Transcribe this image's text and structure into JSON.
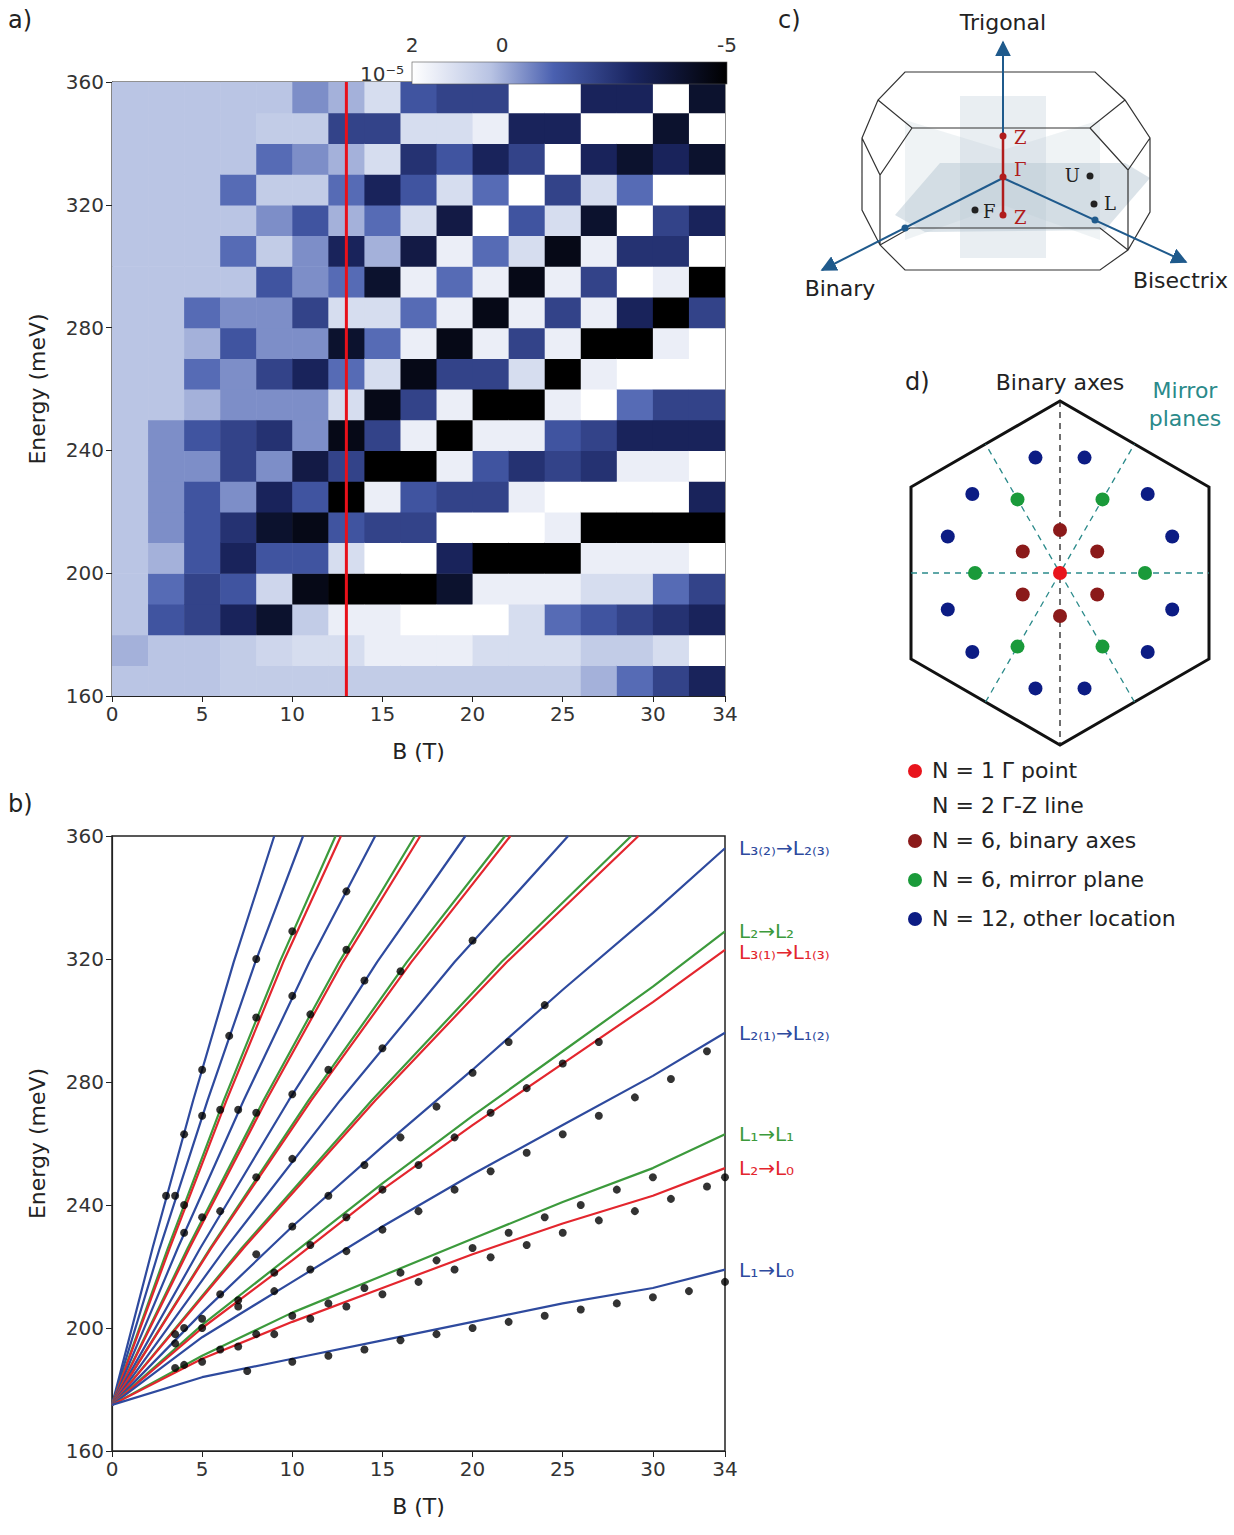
{
  "chart_data": [
    {
      "label": "a)",
      "type": "heatmap",
      "xlabel": "B (T)",
      "ylabel": "Energy (meV)",
      "xlim": [
        0,
        34
      ],
      "xticks": [
        0,
        5,
        10,
        15,
        20,
        25,
        30,
        34
      ],
      "ylim": [
        160,
        360
      ],
      "yticks": [
        160,
        200,
        240,
        280,
        320,
        360
      ],
      "grid": false,
      "xbins": [
        0,
        2,
        4,
        6,
        8,
        10,
        12,
        14,
        16,
        18,
        20,
        22,
        24,
        26,
        28,
        30,
        32,
        34
      ],
      "ybins": [
        160,
        170,
        180,
        190,
        200,
        210,
        220,
        230,
        240,
        250,
        260,
        270,
        280,
        290,
        300,
        310,
        320,
        330,
        340,
        350,
        360
      ],
      "values": [
        [
          0.3,
          0,
          0.3,
          0.3,
          0.3,
          0.3,
          0.3,
          0.3,
          0.3,
          0.3,
          0.3,
          0.3,
          0.3,
          0.3,
          0.3,
          0.3,
          0.3,
          0.3,
          0.3,
          0.3
        ],
        [
          0.3,
          0.3,
          -1.5,
          -1,
          0,
          -0.5,
          -0.5,
          -0.5,
          -0.5,
          0.3,
          0.3,
          0.3,
          0.3,
          0.3,
          0.3,
          0.3,
          0.3,
          0.3,
          0.3,
          0.3
        ],
        [
          0.3,
          0.3,
          -2,
          -2,
          -1.5,
          -1.5,
          -1.5,
          -0.5,
          -1.5,
          0,
          -1,
          0,
          -1,
          0.3,
          0.3,
          0.3,
          0.3,
          0.3,
          0.3,
          0.3
        ],
        [
          0.5,
          0.5,
          -3,
          -1.5,
          -3,
          -2.5,
          -0.5,
          -2,
          -2,
          -0.5,
          -0.5,
          -1.5,
          -0.5,
          0.3,
          -1,
          0.3,
          -1,
          0.3,
          0.3,
          0.3
        ],
        [
          0.5,
          0.8,
          -4,
          0.8,
          -1.5,
          -4,
          -3,
          -0.5,
          -2.5,
          -0.5,
          -2,
          -0.5,
          -0.5,
          -1.5,
          0.5,
          -0.5,
          0.5,
          -1,
          0.5,
          0.3
        ],
        [
          0.5,
          1,
          0.5,
          -4.5,
          -1.5,
          -4.5,
          -1.5,
          -3.5,
          -0.5,
          -0.5,
          -3,
          -0.5,
          -2,
          -0.5,
          -0.5,
          -1.5,
          0.5,
          -0.5,
          0.5,
          -0.5
        ],
        [
          0.5,
          1,
          1.5,
          -5,
          1,
          -1.5,
          -5,
          -2,
          -4.5,
          1,
          -1,
          -4,
          1,
          -1,
          -3,
          0,
          -1,
          0,
          -2,
          0
        ],
        [
          0.5,
          1.5,
          1.5,
          -5,
          2,
          -2,
          1.5,
          -5,
          -2,
          -4.5,
          1,
          -1,
          1,
          -4,
          0,
          -1,
          -3,
          1,
          -2,
          1
        ],
        [
          0.5,
          1.5,
          2,
          -5,
          2,
          -2,
          -1.5,
          -5,
          1.5,
          -2,
          -4.5,
          1.5,
          -1,
          1.5,
          -3.5,
          1,
          -1.5,
          -2.5,
          1,
          -1.5
        ],
        [
          0.5,
          1.5,
          2,
          -4,
          -3,
          2,
          -2,
          1.5,
          -5,
          1.5,
          -2,
          -4.5,
          1.5,
          -1,
          1.5,
          -3.5,
          1,
          -1.5,
          1,
          -2
        ],
        [
          0.5,
          1,
          2,
          1.5,
          -5,
          2,
          -2,
          -1.5,
          1.5,
          -5,
          -2,
          1.5,
          -4.5,
          1.5,
          -1,
          2,
          -1,
          -3,
          1.5,
          -2
        ],
        [
          0.5,
          1,
          1,
          1.5,
          -5,
          2,
          1.5,
          -2.5,
          1.5,
          -5,
          1,
          -2,
          1.5,
          -4.5,
          1,
          -1.5,
          2,
          -2,
          -3,
          2
        ],
        [
          0.5,
          1,
          -1,
          1.5,
          -5,
          1.5,
          2,
          -2,
          -1.5,
          1.5,
          -5,
          1.5,
          -2,
          1.5,
          -4.5,
          1,
          -2,
          2,
          -3,
          2
        ],
        [
          0,
          0.5,
          -1.5,
          1,
          1.5,
          -5,
          2,
          -2.5,
          -2,
          2,
          1.5,
          -5,
          1.5,
          -2,
          1.5,
          -4,
          1,
          -3,
          2,
          -3
        ],
        [
          -1,
          0.5,
          -2,
          1,
          1.5,
          -5,
          2,
          1.5,
          -3,
          -1,
          2,
          -5,
          -3,
          2,
          -2.5,
          2,
          -1,
          -4,
          2,
          -3
        ],
        [
          -2,
          1,
          -2.5,
          -1,
          1.5,
          -5,
          2,
          1.5,
          -3,
          -2,
          2,
          1.5,
          -5,
          1.5,
          -2.5,
          -2,
          2,
          -3,
          -4,
          2
        ],
        [
          -3,
          2,
          -3,
          -2,
          2,
          -5,
          -3,
          2,
          -3,
          -2,
          2,
          2,
          -2,
          -5,
          2,
          -3,
          2,
          -4,
          2,
          -4
        ]
      ],
      "colorbar": {
        "range": [
          -5,
          2
        ],
        "ticks": [
          2,
          0,
          -5
        ],
        "label": "10⁻⁵"
      },
      "vline": {
        "x": 13,
        "color": "#e8101a"
      }
    },
    {
      "label": "b)",
      "type": "line",
      "xlabel": "B (T)",
      "ylabel": "Energy (meV)",
      "xlim": [
        0,
        34
      ],
      "xticks": [
        0,
        5,
        10,
        15,
        20,
        25,
        30,
        34
      ],
      "ylim": [
        160,
        360
      ],
      "yticks": [
        160,
        200,
        240,
        280,
        320,
        360
      ],
      "grid": false,
      "series": [
        {
          "color": "#2e4a9e",
          "x": [
            0,
            2.25,
            4.5,
            6.75,
            9
          ],
          "values": [
            175,
            226,
            274,
            319,
            360
          ]
        },
        {
          "color": "#2e4a9e",
          "x": [
            0,
            2.65,
            5.3,
            7.95,
            10.6
          ],
          "values": [
            175,
            226,
            274,
            319,
            360
          ]
        },
        {
          "color": "#3c9a3c",
          "x": [
            0,
            3.1,
            6.2,
            9.3,
            12.4
          ],
          "values": [
            175,
            226,
            274,
            319,
            360
          ]
        },
        {
          "color": "#e3262e",
          "x": [
            0,
            3.2,
            6.35,
            9.5,
            12.7
          ],
          "values": [
            175,
            226,
            274,
            319,
            360
          ]
        },
        {
          "color": "#2e4a9e",
          "x": [
            0,
            3.65,
            7.3,
            10.95,
            14.6
          ],
          "values": [
            175,
            226,
            274,
            319,
            360
          ]
        },
        {
          "color": "#3c9a3c",
          "x": [
            0,
            4.2,
            8.4,
            12.6,
            16.8
          ],
          "values": [
            175,
            226,
            274,
            319,
            360
          ]
        },
        {
          "color": "#e3262e",
          "x": [
            0,
            4.3,
            8.55,
            12.8,
            17.1
          ],
          "values": [
            175,
            226,
            274,
            319,
            360
          ]
        },
        {
          "color": "#2e4a9e",
          "x": [
            0,
            4.9,
            9.8,
            14.7,
            19.6
          ],
          "values": [
            175,
            226,
            274,
            319,
            360
          ]
        },
        {
          "color": "#3c9a3c",
          "x": [
            0,
            5.45,
            10.9,
            16.35,
            21.8
          ],
          "values": [
            175,
            226,
            274,
            319,
            360
          ]
        },
        {
          "color": "#e3262e",
          "x": [
            0,
            5.5,
            11.05,
            16.6,
            22.1
          ],
          "values": [
            175,
            226,
            274,
            319,
            360
          ]
        },
        {
          "color": "#2e4a9e",
          "x": [
            0,
            6.3,
            12.65,
            19,
            25.3
          ],
          "values": [
            175,
            226,
            274,
            319,
            360
          ]
        },
        {
          "color": "#3c9a3c",
          "x": [
            0,
            7.2,
            14.4,
            21.6,
            28.8
          ],
          "values": [
            175,
            226,
            274,
            319,
            360
          ]
        },
        {
          "color": "#e3262e",
          "x": [
            0,
            7.3,
            14.6,
            21.9,
            29.2
          ],
          "values": [
            175,
            226,
            274,
            319,
            360
          ]
        },
        {
          "name": "L₃₍₂₎→L₂₍₃₎",
          "color": "#2e4a9e",
          "x": [
            0,
            5,
            10,
            15,
            20,
            25,
            30,
            34
          ],
          "values": [
            175,
            205,
            233,
            259,
            284,
            310,
            335,
            356
          ]
        },
        {
          "name": "L₂→L₂",
          "color": "#3c9a3c",
          "x": [
            0,
            5,
            10,
            15,
            20,
            25,
            30,
            34
          ],
          "values": [
            175,
            201,
            224,
            247,
            269,
            290,
            311,
            329
          ]
        },
        {
          "name": "L₃₍₁₎→L₁₍₃₎",
          "color": "#e3262e",
          "x": [
            0,
            5,
            10,
            15,
            20,
            25,
            30,
            34
          ],
          "values": [
            175,
            200,
            222,
            245,
            266,
            286,
            306,
            323
          ]
        },
        {
          "name": "L₂₍₁₎→L₁₍₂₎",
          "color": "#2e4a9e",
          "x": [
            0,
            5,
            10,
            15,
            20,
            25,
            30,
            34
          ],
          "values": [
            175,
            197,
            215,
            233,
            250,
            266,
            282,
            296
          ]
        },
        {
          "name": "L₁→L₁",
          "color": "#3c9a3c",
          "x": [
            0,
            5,
            10,
            15,
            20,
            25,
            30,
            34
          ],
          "values": [
            175,
            191,
            205,
            217,
            229,
            241,
            252,
            263
          ]
        },
        {
          "name": "L₂→L₀",
          "color": "#e3262e",
          "x": [
            0,
            5,
            10,
            15,
            20,
            25,
            30,
            34
          ],
          "values": [
            175,
            190,
            202,
            213,
            224,
            234,
            243,
            252
          ]
        },
        {
          "name": "L₁→L₀",
          "color": "#2e4a9e",
          "x": [
            0,
            5,
            10,
            15,
            20,
            25,
            30,
            34
          ],
          "values": [
            175,
            184,
            190,
            196,
            202,
            208,
            213,
            219
          ]
        },
        {
          "type": "scatter",
          "marker": "circle",
          "color": "#000000",
          "x": [
            7.5,
            10,
            12,
            14,
            16,
            18,
            20,
            22,
            24,
            26,
            28,
            30,
            32,
            34,
            3.5,
            5,
            7,
            9,
            11,
            13,
            15,
            17,
            19,
            21,
            23,
            25,
            27,
            29,
            31,
            33,
            34,
            4,
            6,
            8,
            10,
            12,
            14,
            16,
            18,
            20,
            22,
            24,
            26,
            28,
            30,
            3.5,
            5,
            7,
            9,
            11,
            13,
            15,
            17,
            19,
            21,
            23,
            25,
            27,
            29,
            31,
            33,
            3.5,
            5,
            7,
            9,
            11,
            13,
            15,
            17,
            19,
            21,
            23,
            25,
            27,
            4,
            6,
            8,
            10,
            12,
            14,
            16,
            18,
            20,
            22,
            24,
            3,
            4,
            5,
            3.5,
            5,
            6.5,
            8,
            4,
            6,
            8,
            10,
            4,
            7,
            10,
            13,
            5,
            8,
            11,
            13,
            6,
            10,
            14,
            8,
            12,
            16,
            10,
            15,
            20
          ],
          "values": [
            186,
            189,
            191,
            193,
            196,
            198,
            200,
            202,
            204,
            206,
            208,
            210,
            212,
            215,
            187,
            189,
            194,
            198,
            203,
            207,
            211,
            215,
            219,
            223,
            227,
            231,
            235,
            238,
            242,
            246,
            249,
            188,
            193,
            198,
            204,
            208,
            213,
            218,
            222,
            226,
            231,
            236,
            240,
            245,
            249,
            195,
            200,
            207,
            212,
            219,
            225,
            232,
            238,
            245,
            251,
            257,
            263,
            269,
            275,
            281,
            290,
            198,
            203,
            209,
            218,
            227,
            236,
            245,
            253,
            262,
            270,
            278,
            286,
            293,
            200,
            211,
            224,
            233,
            243,
            253,
            262,
            272,
            283,
            293,
            305,
            243,
            263,
            284,
            243,
            269,
            295,
            320,
            240,
            271,
            301,
            329,
            231,
            271,
            308,
            342,
            236,
            270,
            302,
            323,
            238,
            276,
            313,
            249,
            284,
            316,
            255,
            291,
            326
          ]
        }
      ]
    }
  ],
  "panel_c": {
    "label": "c)",
    "axis_labels": [
      "Trigonal",
      "Binary",
      "Bisectrix"
    ],
    "point_labels": [
      "Z",
      "Γ",
      "Z",
      "U",
      "L",
      "F"
    ]
  },
  "panel_d": {
    "label": "d)",
    "titles": [
      "Binary axes",
      "Mirror planes"
    ],
    "key_entries": [
      {
        "text": "N = 1 Γ point",
        "color": "#e8141c"
      },
      {
        "text": "N = 2 Γ-Z line"
      },
      {
        "text": "N = 6, binary axes",
        "color": "#8b1a1a"
      },
      {
        "text": "N = 6, mirror plane",
        "color": "#1a9a3a"
      },
      {
        "text": "N = 12, other location",
        "color": "#0c1c84"
      }
    ]
  }
}
